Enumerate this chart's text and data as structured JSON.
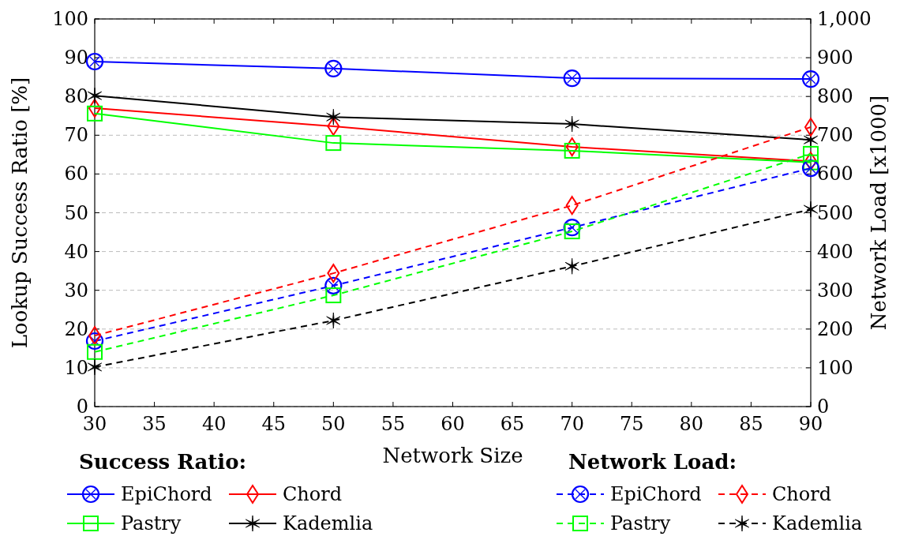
{
  "chart_data": {
    "type": "line",
    "xlabel": "Network Size",
    "ylabel": "Lookup Success Ratio [%]",
    "y2label": "Network Load [x1000]",
    "legend_title": "Success Ratio:",
    "annotations": [
      "Network Load:"
    ],
    "x": [
      30,
      50,
      70,
      90
    ],
    "xlim": [
      30,
      90
    ],
    "xticks": [
      30,
      35,
      40,
      45,
      50,
      55,
      60,
      65,
      70,
      75,
      80,
      85,
      90
    ],
    "ylim": [
      0,
      100
    ],
    "yticks": [
      0,
      10,
      20,
      30,
      40,
      50,
      60,
      70,
      80,
      90,
      100
    ],
    "y2lim": [
      0,
      1000
    ],
    "y2ticks": [
      0,
      100,
      200,
      300,
      400,
      500,
      600,
      700,
      800,
      900,
      {
        "value": 1000,
        "label": "1,000"
      }
    ],
    "grid": "y",
    "legend": "bottom",
    "series": [
      {
        "name": "EpiChord",
        "color": "#0000ff",
        "marker": "circle",
        "line_style": "solid",
        "values": [
          89.0,
          87.2,
          84.7,
          84.5
        ]
      },
      {
        "name": "Chord",
        "color": "#ff0000",
        "marker": "diamond",
        "line_style": "solid",
        "values": [
          77.0,
          72.3,
          67.0,
          63.3
        ]
      },
      {
        "name": "Pastry",
        "color": "#00ff00",
        "marker": "square",
        "line_style": "solid",
        "values": [
          75.6,
          68.0,
          66.0,
          63.0
        ]
      },
      {
        "name": "Kademlia",
        "color": "#000000",
        "marker": "cross",
        "line_style": "solid",
        "values": [
          80.2,
          74.7,
          72.9,
          68.8
        ]
      },
      {
        "name": "EpiChord",
        "color": "#0000ff",
        "marker": "circle",
        "line_style": "dashed",
        "axis": "y2",
        "values": [
          169,
          312,
          462,
          615
        ]
      },
      {
        "name": "Chord",
        "color": "#ff0000",
        "marker": "diamond",
        "line_style": "dashed",
        "axis": "y2",
        "values": [
          183,
          344,
          519,
          721
        ]
      },
      {
        "name": "Pastry",
        "color": "#00ff00",
        "marker": "square",
        "line_style": "dashed",
        "axis": "y2",
        "values": [
          141,
          287,
          452,
          652
        ]
      },
      {
        "name": "Kademlia",
        "color": "#000000",
        "marker": "cross",
        "line_style": "dashed",
        "axis": "y2",
        "values": [
          102,
          222,
          362,
          509
        ]
      }
    ]
  }
}
